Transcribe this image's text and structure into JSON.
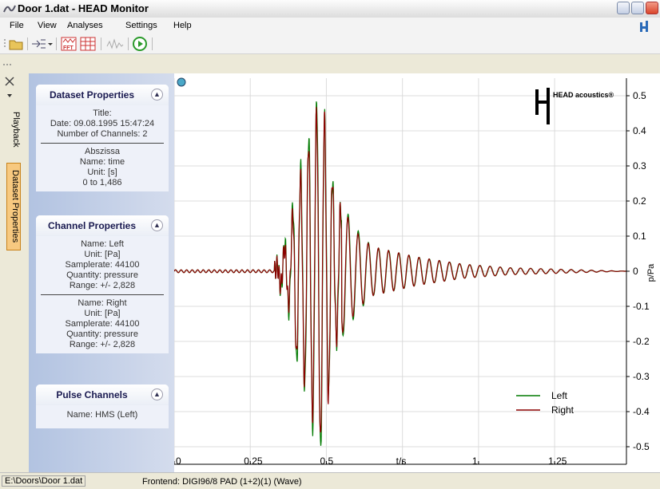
{
  "window": {
    "title": "Door 1.dat - HEAD Monitor"
  },
  "menu": [
    "File",
    "View",
    "Analyses",
    "Settings",
    "Help"
  ],
  "toolbar": {
    "icons": [
      "open-icon",
      "channel-select-icon",
      "fft-icon",
      "grid-icon",
      "waveform-icon",
      "play-icon"
    ]
  },
  "sidetabs": {
    "playback": "Playback",
    "dataset": "Dataset Properties"
  },
  "panels": {
    "dataset": {
      "title": "Dataset Properties",
      "lines1": [
        "Title:",
        "Date: 09.08.1995 15:47:24",
        "Number of Channels: 2"
      ],
      "lines2": [
        "Abszissa",
        "Name: time",
        "Unit: [s]",
        "0 to 1,486"
      ]
    },
    "channel": {
      "title": "Channel Properties",
      "left": [
        "Name: Left",
        "Unit: [Pa]",
        "Samplerate: 44100",
        "Quantity: pressure",
        "Range: +/- 2,828"
      ],
      "right": [
        "Name: Right",
        "Unit: [Pa]",
        "Samplerate: 44100",
        "Quantity: pressure",
        "Range: +/- 2,828"
      ]
    },
    "pulse": {
      "title": "Pulse Channels",
      "lines": [
        "Name: HMS (Left)"
      ]
    }
  },
  "chart": {
    "logo_text": "HEAD acoustics®",
    "colors": {
      "left": "#007a00",
      "right": "#8b0000",
      "grid": "#d9d9d9"
    }
  },
  "chart_data": {
    "type": "line",
    "xlabel": "t/s",
    "ylabel": "p/Pa",
    "xlim": [
      0,
      1.486
    ],
    "ylim": [
      -0.55,
      0.55
    ],
    "x_ticks": [
      "0",
      "0.25",
      "0.5",
      "t/s",
      "1",
      "1.25"
    ],
    "y_ticks": [
      "0.5",
      "0.4",
      "0.3",
      "0.2",
      "0.1",
      "0",
      "-0.1",
      "-0.2",
      "-0.3",
      "-0.4",
      "-0.5"
    ],
    "legend": [
      "Left",
      "Right"
    ],
    "legend_position": "bottom-right",
    "grid": true,
    "series": [
      {
        "name": "Left",
        "color": "#007a00",
        "peaks": [
          [
            0.33,
            0.0
          ],
          [
            0.38,
            0.12
          ],
          [
            0.4,
            -0.26
          ],
          [
            0.42,
            0.3
          ],
          [
            0.44,
            -0.38
          ],
          [
            0.46,
            0.46
          ],
          [
            0.48,
            0.52
          ],
          [
            0.5,
            -0.4
          ],
          [
            0.53,
            0.2
          ],
          [
            0.56,
            -0.18
          ],
          [
            0.6,
            0.12
          ],
          [
            0.65,
            -0.07
          ],
          [
            0.7,
            0.06
          ],
          [
            0.8,
            -0.04
          ],
          [
            0.95,
            0.02
          ],
          [
            1.1,
            0.01
          ],
          [
            1.486,
            0.0
          ]
        ]
      },
      {
        "name": "Right",
        "color": "#8b0000",
        "peaks": [
          [
            0.33,
            0.0
          ],
          [
            0.38,
            0.1
          ],
          [
            0.4,
            -0.24
          ],
          [
            0.42,
            0.28
          ],
          [
            0.44,
            -0.36
          ],
          [
            0.46,
            0.43
          ],
          [
            0.48,
            0.49
          ],
          [
            0.5,
            -0.41
          ],
          [
            0.53,
            0.19
          ],
          [
            0.56,
            -0.17
          ],
          [
            0.6,
            0.11
          ],
          [
            0.65,
            -0.07
          ],
          [
            0.7,
            0.06
          ],
          [
            0.8,
            -0.04
          ],
          [
            0.95,
            0.02
          ],
          [
            1.1,
            0.01
          ],
          [
            1.486,
            0.0
          ]
        ]
      }
    ]
  },
  "status": {
    "path": "E:\\Doors\\Door 1.dat",
    "frontend": "Frontend:  DIGI96/8 PAD (1+2)(1) (Wave)"
  }
}
